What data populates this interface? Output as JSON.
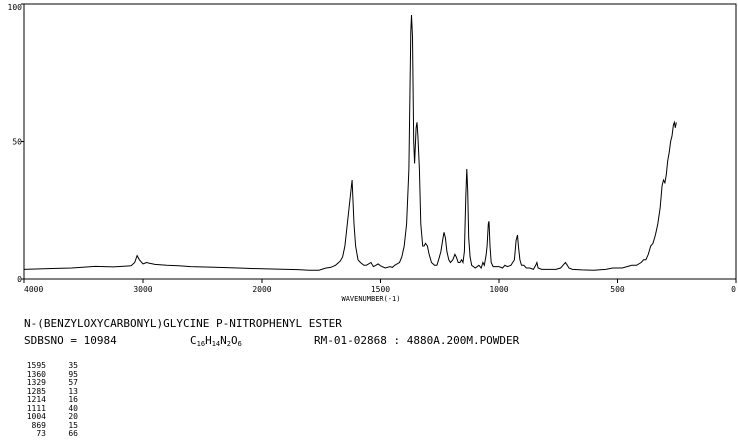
{
  "chart_data": {
    "type": "line",
    "xlabel": "WAVENUMBER(-1)",
    "xlim": [
      4000,
      0
    ],
    "ylim": [
      0,
      100
    ],
    "x_ticks": [
      4000,
      3000,
      2000,
      1500,
      1000,
      500,
      0
    ],
    "x_tick_labels": [
      "4000",
      "3000",
      "2000",
      "1500",
      "1000",
      "500",
      "0"
    ],
    "y_ticks": [
      0,
      50,
      100
    ],
    "y_tick_labels": [
      "0",
      "50",
      "100"
    ],
    "grid": false,
    "series": [
      {
        "points": [
          [
            4000,
            3.5
          ],
          [
            3800,
            3.8
          ],
          [
            3600,
            4.0
          ],
          [
            3400,
            4.6
          ],
          [
            3250,
            4.4
          ],
          [
            3100,
            4.8
          ],
          [
            3070,
            6.0
          ],
          [
            3050,
            8.5
          ],
          [
            3030,
            7.0
          ],
          [
            3000,
            5.5
          ],
          [
            2970,
            6.0
          ],
          [
            2950,
            5.8
          ],
          [
            2900,
            5.3
          ],
          [
            2800,
            5.0
          ],
          [
            2700,
            4.8
          ],
          [
            2600,
            4.5
          ],
          [
            2400,
            4.3
          ],
          [
            2200,
            4.0
          ],
          [
            2000,
            3.7
          ],
          [
            1850,
            3.4
          ],
          [
            1800,
            3.2
          ],
          [
            1760,
            3.2
          ],
          [
            1730,
            4.0
          ],
          [
            1710,
            4.2
          ],
          [
            1690,
            5.0
          ],
          [
            1670,
            6.5
          ],
          [
            1660,
            8.0
          ],
          [
            1650,
            12.0
          ],
          [
            1640,
            20.0
          ],
          [
            1620,
            36.0
          ],
          [
            1612,
            20.0
          ],
          [
            1605,
            12.0
          ],
          [
            1595,
            7.0
          ],
          [
            1585,
            6.0
          ],
          [
            1570,
            5.0
          ],
          [
            1560,
            5.0
          ],
          [
            1550,
            5.5
          ],
          [
            1540,
            6.0
          ],
          [
            1530,
            4.5
          ],
          [
            1520,
            5.0
          ],
          [
            1510,
            5.5
          ],
          [
            1500,
            4.8
          ],
          [
            1480,
            4.0
          ],
          [
            1460,
            4.5
          ],
          [
            1450,
            4.2
          ],
          [
            1440,
            5.0
          ],
          [
            1420,
            6.0
          ],
          [
            1410,
            8.0
          ],
          [
            1400,
            12.0
          ],
          [
            1390,
            20.0
          ],
          [
            1380,
            40.0
          ],
          [
            1372,
            90.0
          ],
          [
            1369,
            96.0
          ],
          [
            1365,
            88.0
          ],
          [
            1360,
            50.0
          ],
          [
            1356,
            42.0
          ],
          [
            1350,
            55.0
          ],
          [
            1346,
            57.0
          ],
          [
            1342,
            52.0
          ],
          [
            1336,
            40.0
          ],
          [
            1330,
            20.0
          ],
          [
            1322,
            12.0
          ],
          [
            1316,
            12.0
          ],
          [
            1310,
            13.0
          ],
          [
            1302,
            12.0
          ],
          [
            1295,
            9.0
          ],
          [
            1285,
            6.0
          ],
          [
            1272,
            5.0
          ],
          [
            1262,
            5.0
          ],
          [
            1255,
            7.0
          ],
          [
            1245,
            10.0
          ],
          [
            1238,
            14.0
          ],
          [
            1232,
            17.0
          ],
          [
            1226,
            15.0
          ],
          [
            1220,
            10.0
          ],
          [
            1212,
            7.0
          ],
          [
            1205,
            6.0
          ],
          [
            1195,
            7.0
          ],
          [
            1186,
            9.0
          ],
          [
            1180,
            8.0
          ],
          [
            1172,
            6.0
          ],
          [
            1165,
            6.0
          ],
          [
            1158,
            7.0
          ],
          [
            1152,
            6.0
          ],
          [
            1146,
            10.0
          ],
          [
            1140,
            30.0
          ],
          [
            1136,
            40.0
          ],
          [
            1132,
            32.0
          ],
          [
            1128,
            15.0
          ],
          [
            1122,
            8.0
          ],
          [
            1115,
            5.0
          ],
          [
            1100,
            4.0
          ],
          [
            1085,
            5.0
          ],
          [
            1075,
            4.0
          ],
          [
            1068,
            6.0
          ],
          [
            1062,
            5.0
          ],
          [
            1058,
            7.0
          ],
          [
            1054,
            9.0
          ],
          [
            1050,
            12.0
          ],
          [
            1045,
            20.0
          ],
          [
            1042,
            21.0
          ],
          [
            1038,
            12.0
          ],
          [
            1033,
            6.0
          ],
          [
            1025,
            4.5
          ],
          [
            1000,
            4.5
          ],
          [
            985,
            4.0
          ],
          [
            975,
            5.0
          ],
          [
            965,
            4.5
          ],
          [
            950,
            5.0
          ],
          [
            942,
            6.0
          ],
          [
            935,
            7.0
          ],
          [
            928,
            14.0
          ],
          [
            922,
            16.0
          ],
          [
            918,
            12.0
          ],
          [
            912,
            7.0
          ],
          [
            905,
            5.0
          ],
          [
            895,
            5.0
          ],
          [
            885,
            4.0
          ],
          [
            870,
            4.0
          ],
          [
            855,
            3.5
          ],
          [
            845,
            5.0
          ],
          [
            840,
            6.0
          ],
          [
            835,
            4.0
          ],
          [
            820,
            3.5
          ],
          [
            790,
            3.5
          ],
          [
            760,
            3.5
          ],
          [
            740,
            4.0
          ],
          [
            730,
            5.0
          ],
          [
            720,
            6.0
          ],
          [
            712,
            5.0
          ],
          [
            705,
            4.0
          ],
          [
            690,
            3.5
          ],
          [
            650,
            3.3
          ],
          [
            600,
            3.2
          ],
          [
            550,
            3.5
          ],
          [
            520,
            4.0
          ],
          [
            500,
            4.0
          ],
          [
            480,
            4.0
          ],
          [
            460,
            4.5
          ],
          [
            440,
            5.0
          ],
          [
            420,
            5.0
          ],
          [
            400,
            6.0
          ],
          [
            390,
            7.0
          ],
          [
            380,
            7.0
          ],
          [
            370,
            9.0
          ],
          [
            360,
            12.0
          ],
          [
            350,
            13.0
          ],
          [
            340,
            16.0
          ],
          [
            330,
            20.0
          ],
          [
            320,
            26.0
          ],
          [
            312,
            34.0
          ],
          [
            306,
            36.0
          ],
          [
            300,
            35.0
          ],
          [
            294,
            38.0
          ],
          [
            288,
            43.0
          ],
          [
            282,
            46.0
          ],
          [
            276,
            50.0
          ],
          [
            270,
            52.0
          ],
          [
            264,
            56.0
          ],
          [
            260,
            57.0
          ],
          [
            256,
            55.0
          ],
          [
            252,
            57.0
          ]
        ]
      }
    ]
  },
  "compound": {
    "name": "N-(BENZYLOXYCARBONYL)GLYCINE P-NITROPHENYL ESTER",
    "sdbs_no": "SDBSNO = 10984",
    "formula": {
      "c": "C",
      "c_n": "16",
      "h": "H",
      "h_n": "14",
      "n": "N",
      "n_n": "2",
      "o": "O",
      "o_n": "6"
    },
    "ref": "RM-01-02868 : 4880A.200M.POWDER"
  },
  "peaks": [
    {
      "wn": "1595",
      "t": "35"
    },
    {
      "wn": "1360",
      "t": "95"
    },
    {
      "wn": "1329",
      "t": "57"
    },
    {
      "wn": "1285",
      "t": "13"
    },
    {
      "wn": "1214",
      "t": "16"
    },
    {
      "wn": "1111",
      "t": "40"
    },
    {
      "wn": "1004",
      "t": "20"
    },
    {
      "wn": "869",
      "t": "15"
    },
    {
      "wn": "73",
      "t": "66"
    }
  ]
}
